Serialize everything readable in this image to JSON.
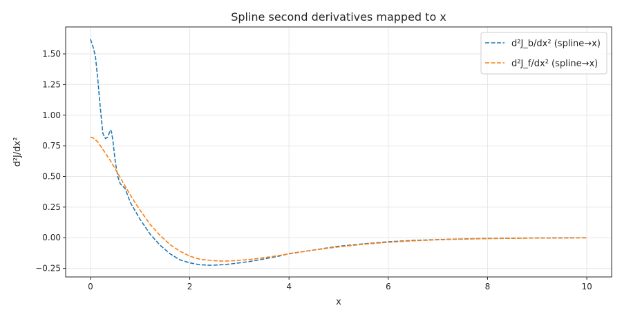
{
  "chart_data": {
    "type": "line",
    "title": "Spline second derivatives mapped to x",
    "xlabel": "x",
    "ylabel": "d²J/dx²",
    "xlim": [
      -0.5,
      10.5
    ],
    "ylim": [
      -0.32,
      1.72
    ],
    "xticks": [
      0,
      2,
      4,
      6,
      8,
      10
    ],
    "yticks": [
      -0.25,
      0.0,
      0.25,
      0.5,
      0.75,
      1.0,
      1.25,
      1.5
    ],
    "xtick_labels": [
      "0",
      "2",
      "4",
      "6",
      "8",
      "10"
    ],
    "ytick_labels": [
      "−0.25",
      "0.00",
      "0.25",
      "0.50",
      "0.75",
      "1.00",
      "1.25",
      "1.50"
    ],
    "grid": true,
    "legend_position": "top-right",
    "series": [
      {
        "name": "d²J_b/dx² (spline→x)",
        "color": "#1f77b4",
        "x": [
          0,
          0.05,
          0.1,
          0.15,
          0.2,
          0.25,
          0.3,
          0.35,
          0.4,
          0.42,
          0.45,
          0.5,
          0.55,
          0.6,
          0.7,
          0.8,
          0.9,
          1.0,
          1.2,
          1.4,
          1.6,
          1.8,
          2.0,
          2.2,
          2.4,
          2.6,
          2.8,
          3.0,
          3.2,
          3.4,
          3.6,
          3.8,
          4.0,
          4.5,
          5.0,
          5.5,
          6.0,
          6.5,
          7.0,
          7.5,
          8.0,
          8.5,
          9.0,
          9.5,
          10.0
        ],
        "y": [
          1.62,
          1.56,
          1.48,
          1.28,
          1.05,
          0.85,
          0.81,
          0.82,
          0.88,
          0.87,
          0.8,
          0.62,
          0.5,
          0.44,
          0.4,
          0.29,
          0.22,
          0.15,
          0.03,
          -0.06,
          -0.13,
          -0.18,
          -0.205,
          -0.22,
          -0.225,
          -0.222,
          -0.215,
          -0.205,
          -0.195,
          -0.18,
          -0.165,
          -0.15,
          -0.13,
          -0.1,
          -0.07,
          -0.05,
          -0.033,
          -0.022,
          -0.015,
          -0.01,
          -0.006,
          -0.004,
          -0.002,
          -0.001,
          0.0
        ]
      },
      {
        "name": "d²J_f/dx² (spline→x)",
        "color": "#ff7f0e",
        "x": [
          0,
          0.05,
          0.1,
          0.15,
          0.2,
          0.3,
          0.4,
          0.5,
          0.6,
          0.7,
          0.8,
          0.9,
          1.0,
          1.2,
          1.4,
          1.6,
          1.8,
          2.0,
          2.2,
          2.4,
          2.6,
          2.8,
          3.0,
          3.2,
          3.4,
          3.6,
          3.8,
          4.0,
          4.5,
          5.0,
          5.5,
          6.0,
          6.5,
          7.0,
          7.5,
          8.0,
          8.5,
          9.0,
          9.5,
          10.0
        ],
        "y": [
          0.82,
          0.815,
          0.8,
          0.78,
          0.75,
          0.69,
          0.63,
          0.56,
          0.49,
          0.42,
          0.35,
          0.285,
          0.225,
          0.11,
          0.02,
          -0.055,
          -0.11,
          -0.15,
          -0.175,
          -0.185,
          -0.19,
          -0.19,
          -0.185,
          -0.178,
          -0.168,
          -0.157,
          -0.145,
          -0.132,
          -0.1,
          -0.075,
          -0.053,
          -0.037,
          -0.025,
          -0.017,
          -0.011,
          -0.007,
          -0.005,
          -0.003,
          -0.002,
          -0.001
        ]
      }
    ]
  }
}
